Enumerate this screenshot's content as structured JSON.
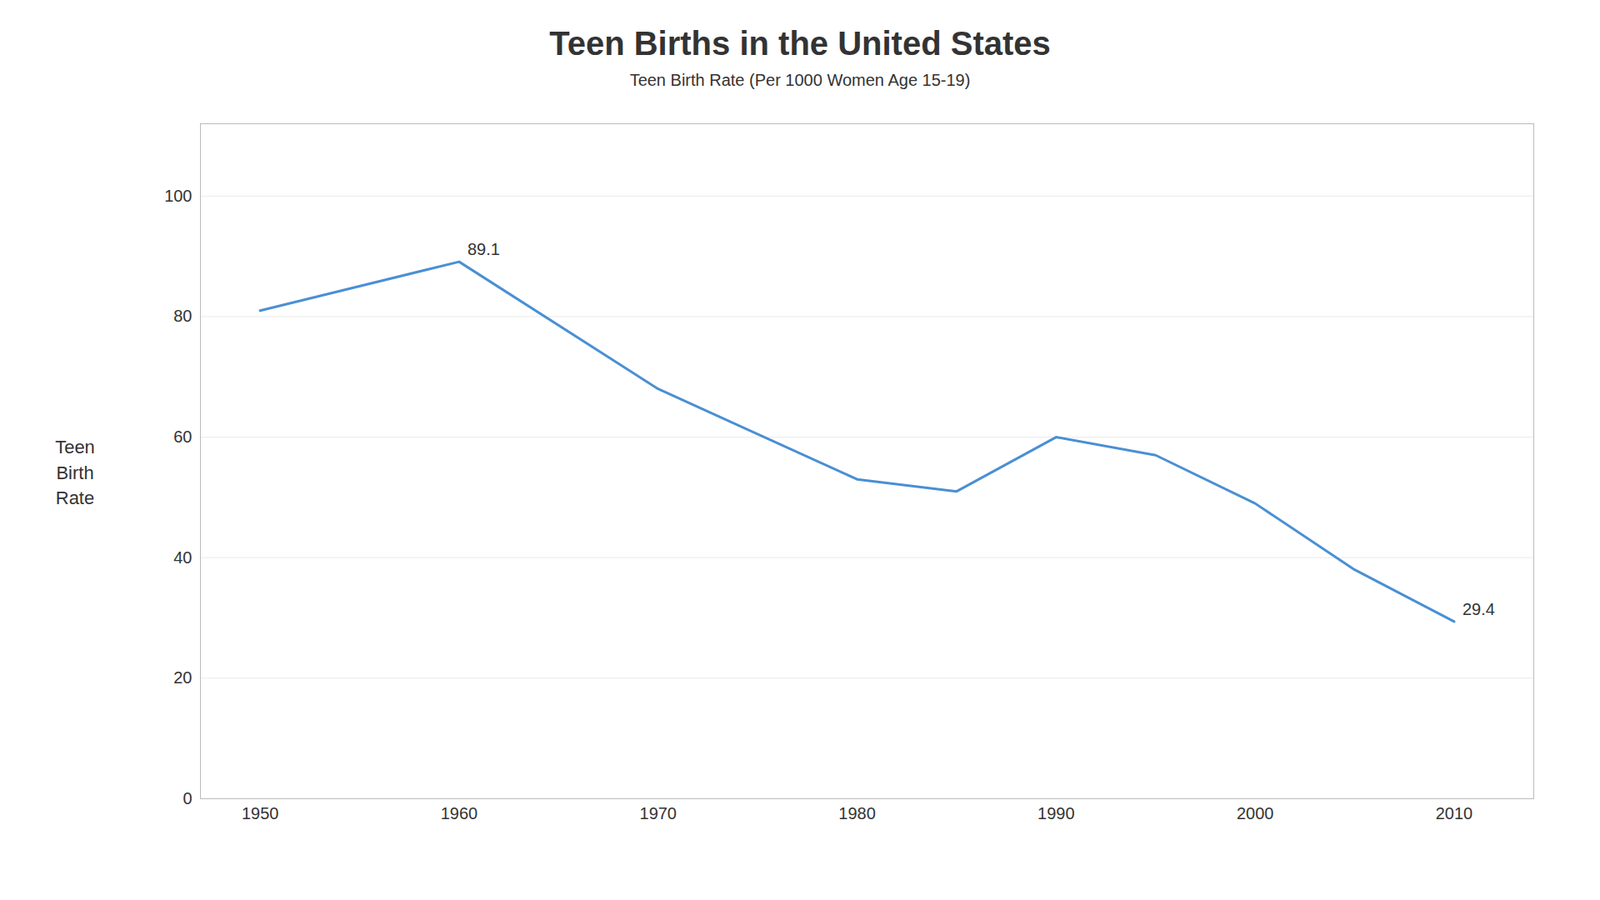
{
  "chart_data": {
    "type": "line",
    "title": "Teen Births in the United States",
    "subtitle": "Teen Birth Rate (Per 1000 Women Age 15-19)",
    "ylabel": "Teen\nBirth\nRate",
    "x": [
      1950,
      1960,
      1970,
      1980,
      1985,
      1990,
      1995,
      2000,
      2005,
      2010
    ],
    "values": [
      81.0,
      89.1,
      68.0,
      53.0,
      51.0,
      60.0,
      57.0,
      49.0,
      38.0,
      29.4
    ],
    "color": "#4A8FD4",
    "annotations": [
      {
        "x": 1960,
        "y": 89.1,
        "text": "89.1"
      },
      {
        "x": 2010,
        "y": 29.4,
        "text": "29.4"
      }
    ],
    "xlim": [
      1947,
      2014
    ],
    "xticks": [
      1950,
      1960,
      1970,
      1980,
      1990,
      2000,
      2010
    ],
    "ylim": [
      0,
      112
    ],
    "yticks": [
      0,
      20,
      40,
      60,
      80,
      100
    ],
    "grid": true
  }
}
